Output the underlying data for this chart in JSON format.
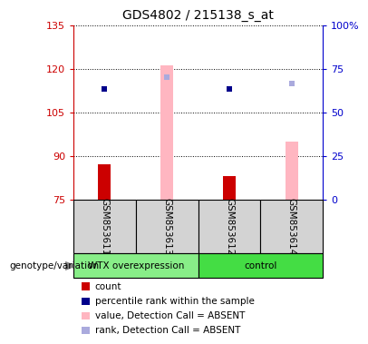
{
  "title": "GDS4802 / 215138_s_at",
  "samples": [
    "GSM853611",
    "GSM853613",
    "GSM853612",
    "GSM853614"
  ],
  "ylim_left": [
    75,
    135
  ],
  "ylim_right": [
    0,
    100
  ],
  "yticks_left": [
    75,
    90,
    105,
    120,
    135
  ],
  "yticks_right": [
    0,
    25,
    50,
    75,
    100
  ],
  "ytick_labels_right": [
    "0",
    "25",
    "50",
    "75",
    "100%"
  ],
  "count_bars": [
    87,
    0,
    83,
    0
  ],
  "count_bar_color": "#CC0000",
  "value_absent_bars": [
    0,
    121,
    0,
    95
  ],
  "value_absent_color": "#FFB6C1",
  "percentile_rank": [
    113,
    0,
    113,
    0
  ],
  "percentile_rank_color": "#00008B",
  "rank_absent": [
    0,
    117,
    0,
    115
  ],
  "rank_absent_color": "#AAAADD",
  "left_axis_color": "#CC0000",
  "right_axis_color": "#0000CC",
  "group_label": "genotype/variation",
  "wtx_color": "#88EE88",
  "ctrl_color": "#44DD44",
  "sample_box_color": "#D3D3D3",
  "legend_items": [
    {
      "label": "count",
      "color": "#CC0000"
    },
    {
      "label": "percentile rank within the sample",
      "color": "#00008B"
    },
    {
      "label": "value, Detection Call = ABSENT",
      "color": "#FFB6C1"
    },
    {
      "label": "rank, Detection Call = ABSENT",
      "color": "#AAAADD"
    }
  ]
}
